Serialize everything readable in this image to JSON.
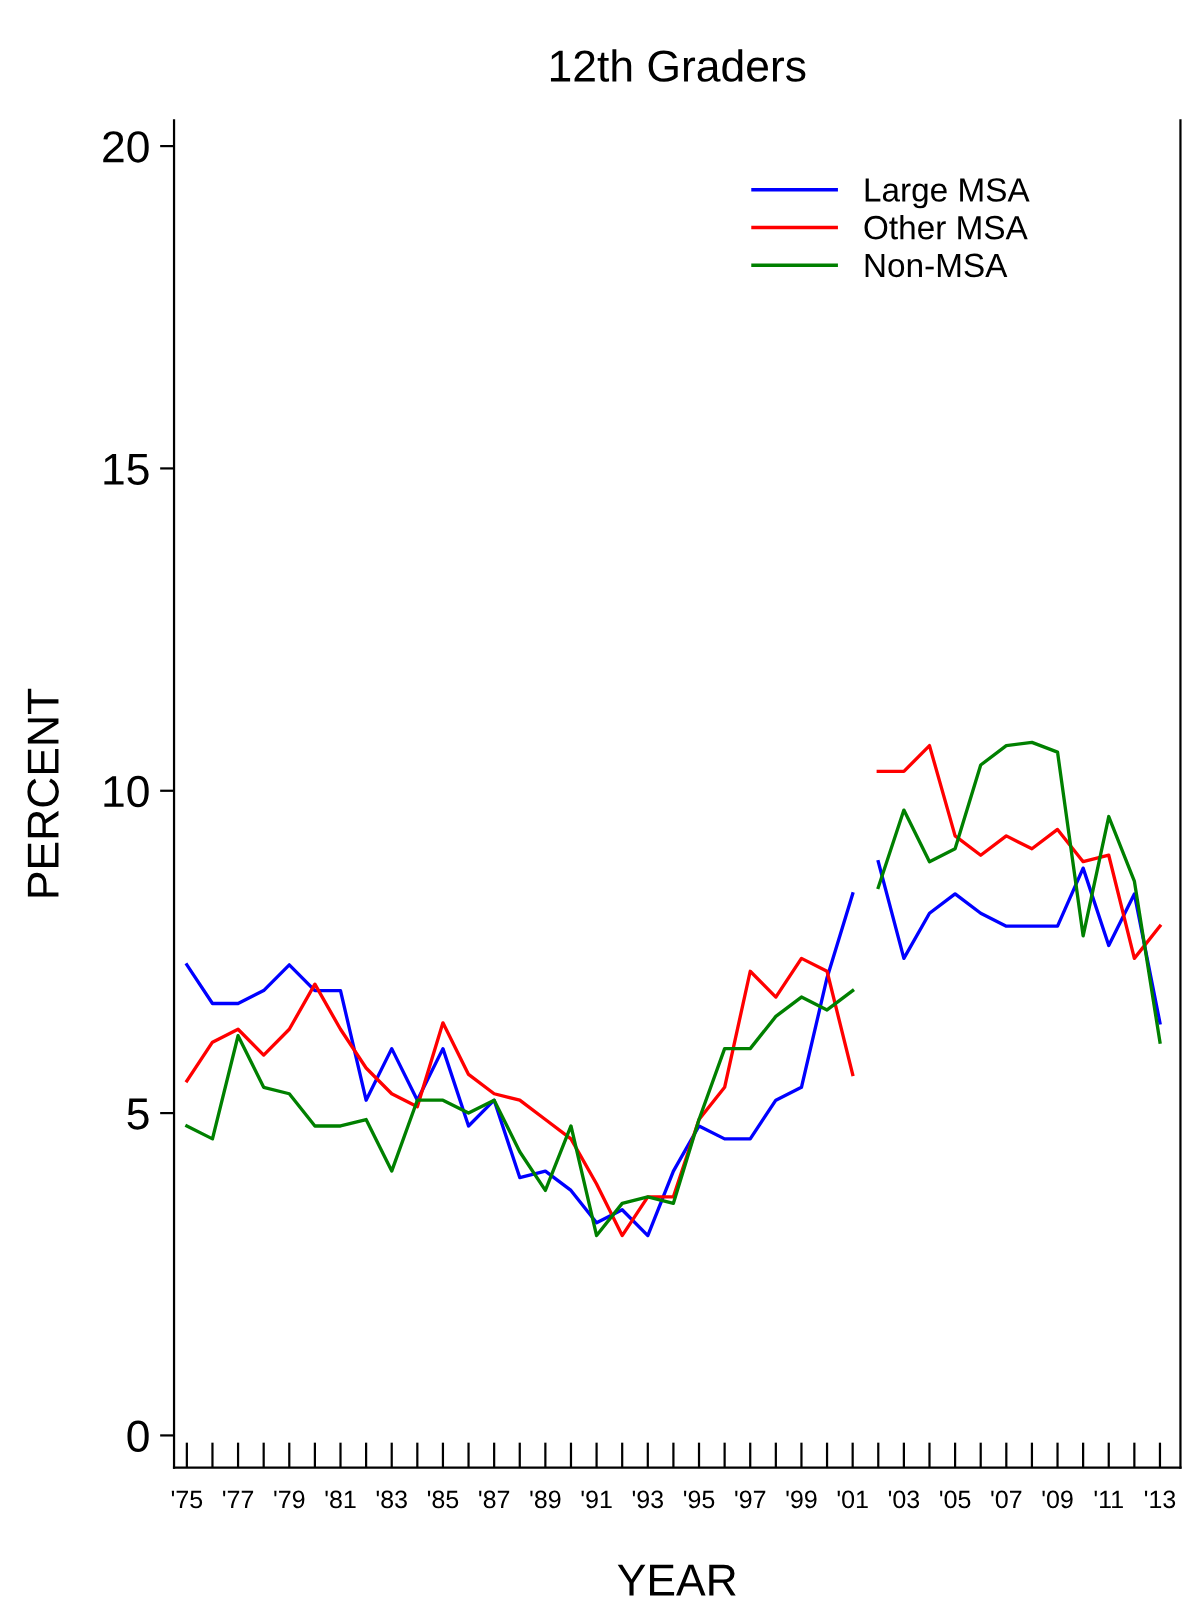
{
  "chart_data": {
    "type": "line",
    "title": "12th Graders",
    "xlabel": "YEAR",
    "ylabel": "PERCENT",
    "x": [
      1975,
      1976,
      1977,
      1978,
      1979,
      1980,
      1981,
      1982,
      1983,
      1984,
      1985,
      1986,
      1987,
      1988,
      1989,
      1990,
      1991,
      1992,
      1993,
      1994,
      1995,
      1996,
      1997,
      1998,
      1999,
      2000,
      2001,
      null,
      2002,
      2003,
      2004,
      2005,
      2006,
      2007,
      2008,
      2009,
      2010,
      2011,
      2012,
      2013
    ],
    "series": [
      {
        "name": "Large MSA",
        "color": "#0000ff",
        "values": [
          7.3,
          6.7,
          6.7,
          6.9,
          7.3,
          6.9,
          6.9,
          5.2,
          6.0,
          5.2,
          6.0,
          4.8,
          5.2,
          4.0,
          4.1,
          3.8,
          3.3,
          3.5,
          3.1,
          4.1,
          4.8,
          4.6,
          4.6,
          5.2,
          5.4,
          7.1,
          8.4,
          null,
          8.9,
          7.4,
          8.1,
          8.4,
          8.1,
          7.9,
          7.9,
          7.9,
          8.8,
          7.6,
          8.4,
          6.4
        ]
      },
      {
        "name": "Other MSA",
        "color": "#ff0000",
        "values": [
          5.5,
          6.1,
          6.3,
          5.9,
          6.3,
          7.0,
          6.3,
          5.7,
          5.3,
          5.1,
          6.4,
          5.6,
          5.3,
          5.2,
          4.9,
          4.6,
          3.9,
          3.1,
          3.7,
          3.7,
          4.9,
          5.4,
          7.2,
          6.8,
          7.4,
          7.2,
          5.6,
          null,
          10.3,
          10.3,
          10.7,
          9.3,
          9.0,
          9.3,
          9.1,
          9.4,
          8.9,
          9.0,
          7.4,
          7.9
        ]
      },
      {
        "name": "Non-MSA",
        "color": "#008000",
        "values": [
          4.8,
          4.6,
          6.2,
          5.4,
          5.3,
          4.8,
          4.8,
          4.9,
          4.1,
          5.2,
          5.2,
          5.0,
          5.2,
          4.4,
          3.8,
          4.8,
          3.1,
          3.6,
          3.7,
          3.6,
          4.9,
          6.0,
          6.0,
          6.5,
          6.8,
          6.6,
          6.9,
          null,
          8.5,
          9.7,
          8.9,
          9.1,
          10.4,
          10.7,
          10.75,
          10.6,
          7.75,
          9.6,
          8.6,
          6.1
        ]
      }
    ],
    "xlim": [
      1974.5,
      2013.8
    ],
    "ylim": [
      -0.5,
      20.4
    ],
    "xticks": [
      {
        "value": 1975,
        "label": "'75"
      },
      {
        "value": 1976,
        "label": null
      },
      {
        "value": 1977,
        "label": "'77"
      },
      {
        "value": 1978,
        "label": null
      },
      {
        "value": 1979,
        "label": "'79"
      },
      {
        "value": 1980,
        "label": null
      },
      {
        "value": 1981,
        "label": "'81"
      },
      {
        "value": 1982,
        "label": null
      },
      {
        "value": 1983,
        "label": "'83"
      },
      {
        "value": 1984,
        "label": null
      },
      {
        "value": 1985,
        "label": "'85"
      },
      {
        "value": 1986,
        "label": null
      },
      {
        "value": 1987,
        "label": "'87"
      },
      {
        "value": 1988,
        "label": null
      },
      {
        "value": 1989,
        "label": "'89"
      },
      {
        "value": 1990,
        "label": null
      },
      {
        "value": 1991,
        "label": "'91"
      },
      {
        "value": 1992,
        "label": null
      },
      {
        "value": 1993,
        "label": "'93"
      },
      {
        "value": 1994,
        "label": null
      },
      {
        "value": 1995,
        "label": "'95"
      },
      {
        "value": 1996,
        "label": null
      },
      {
        "value": 1997,
        "label": "'97"
      },
      {
        "value": 1998,
        "label": null
      },
      {
        "value": 1999,
        "label": "'99"
      },
      {
        "value": 2000,
        "label": null
      },
      {
        "value": 2001,
        "label": "'01"
      },
      {
        "value": 2002,
        "label": null
      },
      {
        "value": 2003,
        "label": "'03"
      },
      {
        "value": 2004,
        "label": null
      },
      {
        "value": 2005,
        "label": "'05"
      },
      {
        "value": 2006,
        "label": null
      },
      {
        "value": 2007,
        "label": "'07"
      },
      {
        "value": 2008,
        "label": null
      },
      {
        "value": 2009,
        "label": "'09"
      },
      {
        "value": 2010,
        "label": null
      },
      {
        "value": 2011,
        "label": "'11"
      },
      {
        "value": 2012,
        "label": null
      },
      {
        "value": 2013,
        "label": "'13"
      }
    ],
    "yticks": [
      0,
      5,
      10,
      15,
      20
    ],
    "legend": "top right",
    "grid": false,
    "marker": "none",
    "line_style": "solid"
  }
}
